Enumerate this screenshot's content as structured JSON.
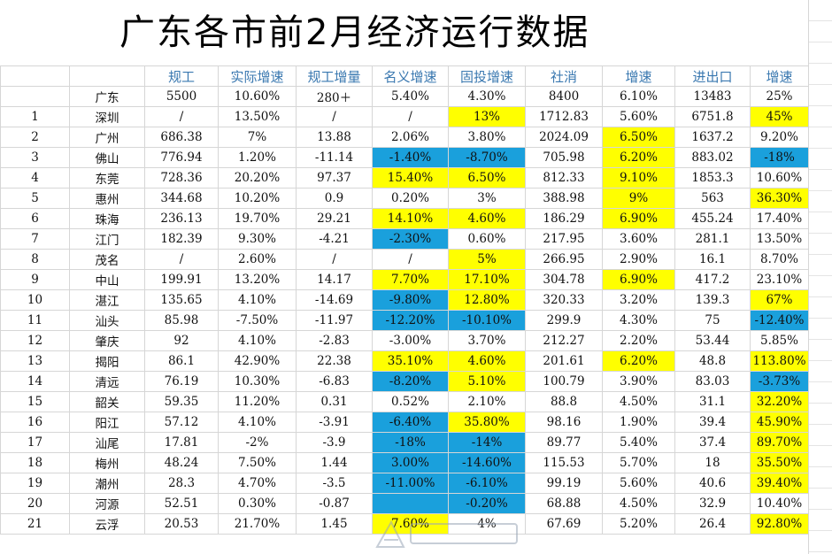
{
  "title": "广东各市前2月经济运行数据",
  "headers": [
    "",
    "",
    "规工",
    "实际增速",
    "规工增量",
    "名义增速",
    "固投增速",
    "社消",
    "增速",
    "进出口",
    "增速"
  ],
  "province": {
    "name": "广东",
    "cells": [
      "5500",
      "10.60%",
      "280＋",
      "5.40%",
      "4.30%",
      "8400",
      "6.10%",
      "13483",
      "25%"
    ]
  },
  "rows": [
    {
      "idx": "1",
      "city": "深圳",
      "cells": [
        "/",
        "13.50%",
        "/",
        "/",
        "13%",
        "1712.83",
        "5.60%",
        "6751.8",
        "45%"
      ]
    },
    {
      "idx": "2",
      "city": "广州",
      "cells": [
        "686.38",
        "7%",
        "13.88",
        "2.06%",
        "3.80%",
        "2024.09",
        "6.50%",
        "1637.2",
        "9.20%"
      ]
    },
    {
      "idx": "3",
      "city": "佛山",
      "cells": [
        "776.94",
        "1.20%",
        "-11.14",
        "-1.40%",
        "-8.70%",
        "705.98",
        "6.20%",
        "883.02",
        "-18%"
      ]
    },
    {
      "idx": "4",
      "city": "东莞",
      "cells": [
        "728.36",
        "20.20%",
        "97.37",
        "15.40%",
        "6.50%",
        "812.33",
        "9.10%",
        "1853.3",
        "10.60%"
      ]
    },
    {
      "idx": "5",
      "city": "惠州",
      "cells": [
        "344.68",
        "10.20%",
        "0.9",
        "0.20%",
        "3%",
        "388.98",
        "9%",
        "563",
        "36.30%"
      ]
    },
    {
      "idx": "6",
      "city": "珠海",
      "cells": [
        "236.13",
        "19.70%",
        "29.21",
        "14.10%",
        "4.60%",
        "186.29",
        "6.90%",
        "455.24",
        "17.40%"
      ]
    },
    {
      "idx": "7",
      "city": "江门",
      "cells": [
        "182.39",
        "9.30%",
        "-4.21",
        "-2.30%",
        "0.60%",
        "217.95",
        "3.60%",
        "281.1",
        "13.50%"
      ]
    },
    {
      "idx": "8",
      "city": "茂名",
      "cells": [
        "/",
        "2.60%",
        "/",
        "/",
        "5%",
        "266.95",
        "2.90%",
        "16.1",
        "8.70%"
      ]
    },
    {
      "idx": "9",
      "city": "中山",
      "cells": [
        "199.91",
        "13.20%",
        "14.17",
        "7.70%",
        "17.10%",
        "304.78",
        "6.90%",
        "417.2",
        "23.10%"
      ]
    },
    {
      "idx": "10",
      "city": "湛江",
      "cells": [
        "135.65",
        "4.10%",
        "-14.69",
        "-9.80%",
        "12.80%",
        "320.33",
        "3.20%",
        "139.3",
        "67%"
      ]
    },
    {
      "idx": "11",
      "city": "汕头",
      "cells": [
        "85.98",
        "-7.50%",
        "-11.97",
        "-12.20%",
        "-10.10%",
        "299.9",
        "4.30%",
        "75",
        "-12.40%"
      ]
    },
    {
      "idx": "12",
      "city": "肇庆",
      "cells": [
        "92",
        "4.10%",
        "-2.83",
        "-3.00%",
        "3.70%",
        "212.27",
        "2.20%",
        "53.44",
        "5.85%"
      ]
    },
    {
      "idx": "13",
      "city": "揭阳",
      "cells": [
        "86.1",
        "42.90%",
        "22.38",
        "35.10%",
        "4.60%",
        "201.61",
        "6.20%",
        "48.8",
        "113.80%"
      ]
    },
    {
      "idx": "14",
      "city": "清远",
      "cells": [
        "76.19",
        "10.30%",
        "-6.83",
        "-8.20%",
        "5.10%",
        "100.79",
        "3.90%",
        "83.03",
        "-3.73%"
      ]
    },
    {
      "idx": "15",
      "city": "韶关",
      "cells": [
        "59.35",
        "11.20%",
        "0.31",
        "0.52%",
        "2.10%",
        "88.8",
        "4.50%",
        "31.1",
        "32.20%"
      ]
    },
    {
      "idx": "16",
      "city": "阳江",
      "cells": [
        "57.12",
        "4.10%",
        "-3.91",
        "-6.40%",
        "35.80%",
        "98.16",
        "1.90%",
        "39.4",
        "45.90%"
      ]
    },
    {
      "idx": "17",
      "city": "汕尾",
      "cells": [
        "17.81",
        "-2%",
        "-3.9",
        "-18%",
        "-14%",
        "89.77",
        "5.40%",
        "37.4",
        "89.70%"
      ]
    },
    {
      "idx": "18",
      "city": "梅州",
      "cells": [
        "48.24",
        "7.50%",
        "1.44",
        "3.00%",
        "-14.60%",
        "115.53",
        "5.70%",
        "18",
        "35.50%"
      ]
    },
    {
      "idx": "19",
      "city": "潮州",
      "cells": [
        "28.3",
        "4.70%",
        "-3.5",
        "-11.00%",
        "-6.10%",
        "99.19",
        "5.60%",
        "40.6",
        "39.40%"
      ]
    },
    {
      "idx": "20",
      "city": "河源",
      "cells": [
        "52.51",
        "0.30%",
        "-0.87",
        "",
        "-0.20%",
        "68.88",
        "4.50%",
        "32.9",
        "10.40%"
      ]
    },
    {
      "idx": "21",
      "city": "云浮",
      "cells": [
        "20.53",
        "21.70%",
        "1.45",
        "7.60%",
        "4%",
        "67.69",
        "5.20%",
        "26.4",
        "92.80%"
      ]
    }
  ],
  "highlights": {
    "1": {
      "4": "y",
      "8": "y"
    },
    "2": {
      "6": "y"
    },
    "3": {
      "3": "b",
      "4": "b",
      "6": "y",
      "8": "b"
    },
    "4": {
      "3": "y",
      "4": "y",
      "6": "y"
    },
    "5": {
      "6": "y",
      "8": "y"
    },
    "6": {
      "3": "y",
      "4": "y",
      "6": "y"
    },
    "7": {
      "3": "b"
    },
    "8": {
      "4": "y"
    },
    "9": {
      "3": "y",
      "4": "y",
      "6": "y"
    },
    "10": {
      "3": "b",
      "4": "y",
      "8": "y"
    },
    "11": {
      "3": "b",
      "4": "b",
      "8": "b"
    },
    "13": {
      "3": "y",
      "4": "y",
      "6": "y",
      "8": "y"
    },
    "14": {
      "3": "b",
      "4": "y",
      "8": "b"
    },
    "15": {
      "8": "y"
    },
    "16": {
      "3": "b",
      "4": "y",
      "8": "y"
    },
    "17": {
      "3": "b",
      "4": "b",
      "8": "y"
    },
    "18": {
      "3": "b",
      "4": "b",
      "8": "y"
    },
    "19": {
      "3": "b",
      "4": "b",
      "8": "y"
    },
    "20": {
      "3": "b",
      "4": "b"
    },
    "21": {
      "3": "y",
      "8": "y"
    }
  },
  "colors": {
    "yellow": "#ffff00",
    "blue": "#1aa0dc",
    "header_text": "#3a78b0",
    "grid": "#d6d6d6"
  }
}
